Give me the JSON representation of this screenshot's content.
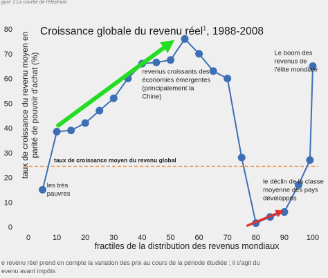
{
  "caption_top": "gure 1 La courbe de l'éléphant",
  "caption_bottom_1": "e revenu réel prend en compte la variation des prix au cours de la période étudiée ; il s'agit du",
  "caption_bottom_2": "evenu avant impôts",
  "chart_data": {
    "type": "line",
    "title": "Croissance globale du revenu réel",
    "title_superscript": "1",
    "title_suffix": ", 1988-2008",
    "xlabel": "fractiles de la distribution des revenus mondiaux",
    "ylabel_line1": "taux de croissance du revenu moyen en",
    "ylabel_line2": "parité de pouvoir d'achat (%)",
    "xlim": [
      0,
      100
    ],
    "ylim": [
      0,
      80
    ],
    "xticks": [
      0,
      10,
      20,
      30,
      40,
      50,
      60,
      70,
      80,
      90,
      100
    ],
    "yticks": [
      0,
      10,
      20,
      30,
      40,
      50,
      60,
      70,
      80
    ],
    "grid": false,
    "series": [
      {
        "x": [
          5,
          10,
          15,
          20,
          25,
          30,
          35,
          40,
          45,
          50,
          55,
          60,
          65,
          70,
          75,
          80,
          85,
          90,
          95,
          99,
          100
        ],
        "y": [
          15,
          38.5,
          39,
          42,
          47,
          52,
          60,
          66,
          66.5,
          67.5,
          76,
          70,
          63,
          60,
          28,
          1.5,
          4,
          6,
          17,
          27,
          65
        ],
        "line_color": "#3d6fb4",
        "marker_color": "#3d6fb4"
      }
    ],
    "reference_line": {
      "y": 24.5,
      "label": "taux de croissance moyen du revenu global",
      "color": "#f08a3a"
    },
    "annotations": [
      {
        "id": "pauvres",
        "lines": [
          "les très",
          "pauvres"
        ],
        "x": 6.5,
        "y": 16
      },
      {
        "id": "emergents",
        "lines": [
          "revenus croissants des",
          "économies émergentes",
          "(principalement la",
          "Chine)"
        ],
        "x": 40,
        "y": 62
      },
      {
        "id": "elite",
        "lines": [
          "Le boom des",
          "revenus de",
          "l'élite mondiale"
        ],
        "x": 86.5,
        "y": 69.5
      },
      {
        "id": "declin",
        "lines": [
          "le déclin de la classe",
          "moyenne des pays",
          "développés"
        ],
        "x": 82.5,
        "y": 17.5
      }
    ],
    "overlay_arrows": [
      {
        "color": "#22dd22",
        "from": [
          10.5,
          41
        ],
        "to": [
          49.5,
          74
        ]
      },
      {
        "color": "#e0302a",
        "from": [
          77,
          0.5
        ],
        "to": [
          88.5,
          6
        ]
      }
    ]
  }
}
